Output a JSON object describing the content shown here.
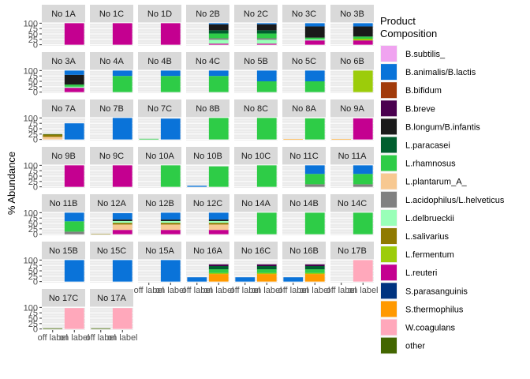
{
  "chart_data": {
    "type": "bar",
    "stacked": true,
    "facets": true,
    "ylabel": "% Abundance",
    "ylim": [
      0,
      100
    ],
    "y_ticks": [
      "0",
      "25",
      "50",
      "75",
      "100"
    ],
    "x_categories": [
      "off label",
      "on label"
    ],
    "legend_position": "right",
    "legend_title_lines": [
      "Product",
      "Composition"
    ],
    "series": [
      {
        "name": "B.subtilis_",
        "color": "#F0A3F0"
      },
      {
        "name": "B.animalis/B.lactis",
        "color": "#0A73D9"
      },
      {
        "name": "B.bifidum",
        "color": "#A13A0A"
      },
      {
        "name": "B.breve",
        "color": "#4A004F"
      },
      {
        "name": "B.longum/B.infantis",
        "color": "#1A1A1A"
      },
      {
        "name": "L.paracasei",
        "color": "#005E2E"
      },
      {
        "name": "L.rhamnosus",
        "color": "#2ECC47"
      },
      {
        "name": "L.plantarum_A_",
        "color": "#F7C891"
      },
      {
        "name": "L.acidophilus/L.helveticus",
        "color": "#808080"
      },
      {
        "name": "L.delbrueckii",
        "color": "#99FFB8"
      },
      {
        "name": "L.salivarius",
        "color": "#8F7A00"
      },
      {
        "name": "L.fermentum",
        "color": "#9CCC0A"
      },
      {
        "name": "L.reuteri",
        "color": "#C40090"
      },
      {
        "name": "S.parasanguinis",
        "color": "#003380"
      },
      {
        "name": "S.thermophilus",
        "color": "#FF9900"
      },
      {
        "name": "W.coagulans",
        "color": "#FFA8BB"
      },
      {
        "name": "other",
        "color": "#426600"
      }
    ],
    "panels": [
      {
        "label": "No 1A",
        "off": [],
        "on": [
          [
            "L.reuteri",
            100
          ]
        ]
      },
      {
        "label": "No 1C",
        "off": [],
        "on": [
          [
            "L.reuteri",
            100
          ]
        ]
      },
      {
        "label": "No 1D",
        "off": [],
        "on": [
          [
            "L.reuteri",
            100
          ]
        ]
      },
      {
        "label": "No 2B",
        "off": [],
        "on": [
          [
            "L.reuteri",
            5
          ],
          [
            "L.delbrueckii",
            18
          ],
          [
            "L.acidophilus/L.helveticus",
            7
          ],
          [
            "L.rhamnosus",
            22
          ],
          [
            "L.paracasei",
            15
          ],
          [
            "B.longum/B.infantis",
            28
          ],
          [
            "B.animalis/B.lactis",
            5
          ]
        ]
      },
      {
        "label": "No 2C",
        "off": [],
        "on": [
          [
            "L.reuteri",
            5
          ],
          [
            "L.delbrueckii",
            18
          ],
          [
            "L.acidophilus/L.helveticus",
            7
          ],
          [
            "L.rhamnosus",
            22
          ],
          [
            "L.paracasei",
            15
          ],
          [
            "B.longum/B.infantis",
            28
          ],
          [
            "B.animalis/B.lactis",
            5
          ]
        ]
      },
      {
        "label": "No 3C",
        "off": [],
        "on": [
          [
            "L.reuteri",
            20
          ],
          [
            "L.delbrueckii",
            5
          ],
          [
            "L.rhamnosus",
            8
          ],
          [
            "B.longum/B.infantis",
            52
          ],
          [
            "B.animalis/B.lactis",
            15
          ]
        ]
      },
      {
        "label": "No 3B",
        "off": [],
        "on": [
          [
            "L.reuteri",
            20
          ],
          [
            "L.fermentum",
            8
          ],
          [
            "L.rhamnosus",
            10
          ],
          [
            "B.longum/B.infantis",
            47
          ],
          [
            "B.animalis/B.lactis",
            15
          ]
        ]
      },
      {
        "label": "No 3A",
        "off": [],
        "on": [
          [
            "L.reuteri",
            20
          ],
          [
            "L.delbrueckii",
            5
          ],
          [
            "L.rhamnosus",
            10
          ],
          [
            "B.longum/B.infantis",
            45
          ],
          [
            "B.animalis/B.lactis",
            20
          ]
        ]
      },
      {
        "label": "No 4A",
        "off": [],
        "on": [
          [
            "L.rhamnosus",
            75
          ],
          [
            "B.animalis/B.lactis",
            25
          ]
        ]
      },
      {
        "label": "No 4B",
        "off": [],
        "on": [
          [
            "L.rhamnosus",
            75
          ],
          [
            "B.animalis/B.lactis",
            25
          ]
        ]
      },
      {
        "label": "No 4C",
        "off": [],
        "on": [
          [
            "L.rhamnosus",
            75
          ],
          [
            "B.animalis/B.lactis",
            25
          ]
        ]
      },
      {
        "label": "No 5B",
        "off": [],
        "on": [
          [
            "L.rhamnosus",
            50
          ],
          [
            "B.animalis/B.lactis",
            50
          ]
        ]
      },
      {
        "label": "No 5C",
        "off": [],
        "on": [
          [
            "L.rhamnosus",
            50
          ],
          [
            "B.animalis/B.lactis",
            50
          ]
        ]
      },
      {
        "label": "No 6B",
        "off": [],
        "on": [
          [
            "L.fermentum",
            100
          ]
        ]
      },
      {
        "label": "No 7A",
        "off": [
          [
            "L.plantarum_A_",
            12
          ],
          [
            "L.salivarius",
            10
          ],
          [
            "other",
            3
          ]
        ],
        "on": [
          [
            "B.animalis/B.lactis",
            75
          ]
        ]
      },
      {
        "label": "No 7B",
        "off": [],
        "on": [
          [
            "B.animalis/B.lactis",
            100
          ]
        ]
      },
      {
        "label": "No 7C",
        "off": [
          [
            "L.rhamnosus",
            3
          ]
        ],
        "on": [
          [
            "B.animalis/B.lactis",
            97
          ]
        ]
      },
      {
        "label": "No 8B",
        "off": [],
        "on": [
          [
            "L.rhamnosus",
            100
          ]
        ]
      },
      {
        "label": "No 8C",
        "off": [],
        "on": [
          [
            "L.rhamnosus",
            100
          ]
        ]
      },
      {
        "label": "No 8A",
        "off": [
          [
            "S.thermophilus",
            2
          ]
        ],
        "on": [
          [
            "L.rhamnosus",
            98
          ]
        ]
      },
      {
        "label": "No 9A",
        "off": [
          [
            "S.thermophilus",
            2
          ]
        ],
        "on": [
          [
            "L.reuteri",
            98
          ]
        ]
      },
      {
        "label": "No 9B",
        "off": [],
        "on": [
          [
            "L.reuteri",
            100
          ]
        ]
      },
      {
        "label": "No 9C",
        "off": [],
        "on": [
          [
            "L.reuteri",
            100
          ]
        ]
      },
      {
        "label": "No 10A",
        "off": [],
        "on": [
          [
            "L.rhamnosus",
            100
          ]
        ]
      },
      {
        "label": "No 10B",
        "off": [
          [
            "B.animalis/B.lactis",
            5
          ]
        ],
        "on": [
          [
            "L.rhamnosus",
            95
          ]
        ]
      },
      {
        "label": "No 10C",
        "off": [],
        "on": [
          [
            "L.rhamnosus",
            100
          ]
        ]
      },
      {
        "label": "No 11C",
        "off": [],
        "on": [
          [
            "L.acidophilus/L.helveticus",
            12
          ],
          [
            "L.rhamnosus",
            48
          ],
          [
            "B.animalis/B.lactis",
            40
          ]
        ]
      },
      {
        "label": "No 11A",
        "off": [],
        "on": [
          [
            "L.acidophilus/L.helveticus",
            12
          ],
          [
            "L.rhamnosus",
            48
          ],
          [
            "B.animalis/B.lactis",
            40
          ]
        ]
      },
      {
        "label": "No 11B",
        "off": [],
        "on": [
          [
            "L.acidophilus/L.helveticus",
            12
          ],
          [
            "L.rhamnosus",
            48
          ],
          [
            "B.animalis/B.lactis",
            40
          ]
        ]
      },
      {
        "label": "No 12A",
        "off": [
          [
            "L.salivarius",
            2
          ]
        ],
        "on": [
          [
            "L.reuteri",
            20
          ],
          [
            "L.plantarum_A_",
            25
          ],
          [
            "L.salivarius",
            8
          ],
          [
            "L.delbrueckii",
            8
          ],
          [
            "B.longum/B.infantis",
            7
          ],
          [
            "B.animalis/B.lactis",
            30
          ]
        ]
      },
      {
        "label": "No 12B",
        "off": [],
        "on": [
          [
            "L.reuteri",
            20
          ],
          [
            "L.plantarum_A_",
            25
          ],
          [
            "L.salivarius",
            8
          ],
          [
            "L.delbrueckii",
            8
          ],
          [
            "B.longum/B.infantis",
            7
          ],
          [
            "B.animalis/B.lactis",
            32
          ]
        ]
      },
      {
        "label": "No 12C",
        "off": [],
        "on": [
          [
            "L.reuteri",
            20
          ],
          [
            "L.plantarum_A_",
            25
          ],
          [
            "L.salivarius",
            8
          ],
          [
            "L.delbrueckii",
            8
          ],
          [
            "B.longum/B.infantis",
            7
          ],
          [
            "B.animalis/B.lactis",
            32
          ]
        ]
      },
      {
        "label": "No 14A",
        "off": [],
        "on": [
          [
            "L.rhamnosus",
            100
          ]
        ]
      },
      {
        "label": "No 14B",
        "off": [],
        "on": [
          [
            "L.rhamnosus",
            100
          ]
        ]
      },
      {
        "label": "No 14C",
        "off": [],
        "on": [
          [
            "L.rhamnosus",
            100
          ]
        ]
      },
      {
        "label": "No 15B",
        "off": [],
        "on": [
          [
            "B.animalis/B.lactis",
            100
          ]
        ]
      },
      {
        "label": "No 15C",
        "off": [],
        "on": [
          [
            "B.animalis/B.lactis",
            100
          ]
        ]
      },
      {
        "label": "No 15A",
        "off": [],
        "on": [
          [
            "B.animalis/B.lactis",
            100
          ]
        ]
      },
      {
        "label": "No 16A",
        "off": [
          [
            "B.animalis/B.lactis",
            20
          ]
        ],
        "on": [
          [
            "S.thermophilus",
            35
          ],
          [
            "L.fermentum",
            5
          ],
          [
            "L.rhamnosus",
            17
          ],
          [
            "L.paracasei",
            15
          ],
          [
            "B.breve",
            8
          ]
        ]
      },
      {
        "label": "No 16C",
        "off": [
          [
            "B.animalis/B.lactis",
            20
          ]
        ],
        "on": [
          [
            "S.thermophilus",
            35
          ],
          [
            "L.fermentum",
            5
          ],
          [
            "L.rhamnosus",
            17
          ],
          [
            "L.paracasei",
            15
          ],
          [
            "B.breve",
            8
          ]
        ]
      },
      {
        "label": "No 16B",
        "off": [
          [
            "B.animalis/B.lactis",
            20
          ]
        ],
        "on": [
          [
            "S.thermophilus",
            35
          ],
          [
            "L.fermentum",
            5
          ],
          [
            "L.rhamnosus",
            17
          ],
          [
            "L.paracasei",
            15
          ],
          [
            "B.breve",
            8
          ]
        ]
      },
      {
        "label": "No 17B",
        "off": [],
        "on": [
          [
            "W.coagulans",
            100
          ]
        ]
      },
      {
        "label": "No 17C",
        "off": [
          [
            "other",
            3
          ]
        ],
        "on": [
          [
            "W.coagulans",
            97
          ]
        ]
      },
      {
        "label": "No 17A",
        "off": [
          [
            "other",
            3
          ]
        ],
        "on": [
          [
            "W.coagulans",
            97
          ]
        ]
      }
    ]
  }
}
